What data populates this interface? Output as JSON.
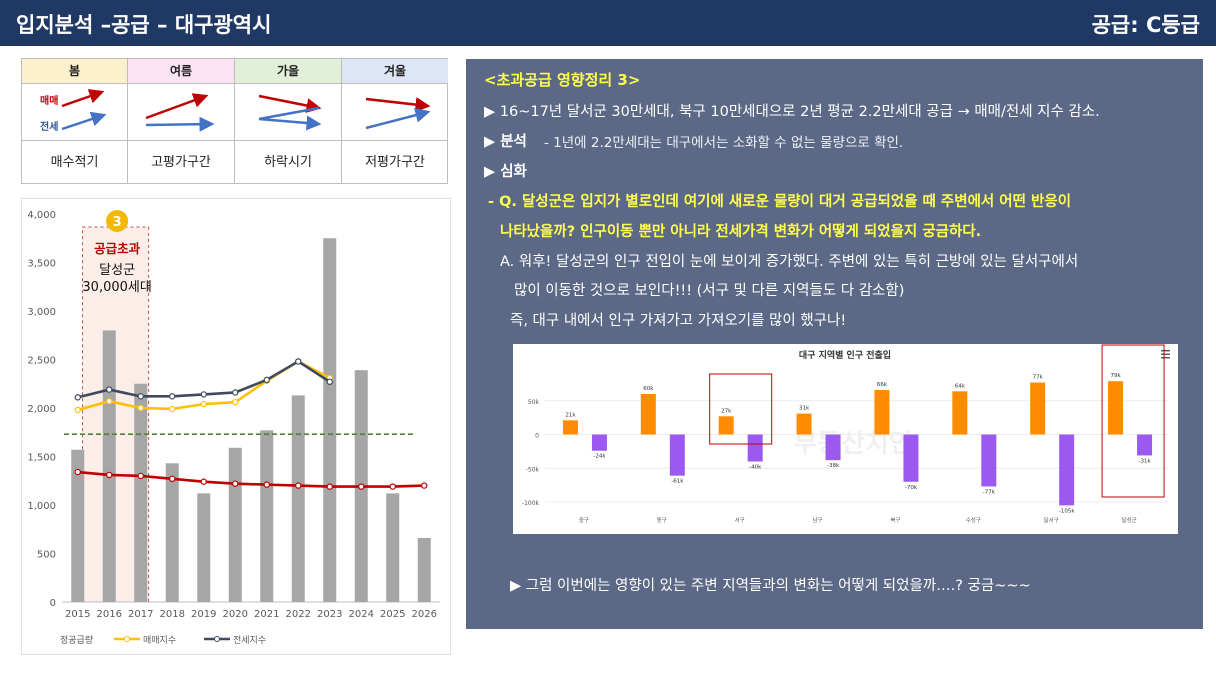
{
  "header": {
    "title": "입지분석 –공급 – 대구광역시",
    "grade": "공급: C등급"
  },
  "season_table": {
    "columns": [
      {
        "season": "봄",
        "desc": "매수적기",
        "bg": "#fdf0cc"
      },
      {
        "season": "여름",
        "desc": "고평가구간",
        "bg": "#fbe3f3"
      },
      {
        "season": "가을",
        "desc": "하락시기",
        "bg": "#e2efd9"
      },
      {
        "season": "겨울",
        "desc": "저평가구간",
        "bg": "#dce6f4"
      }
    ],
    "label_sale": "매매",
    "label_jeonse": "전세"
  },
  "supply_chart": {
    "badge": "3",
    "annotation_title": "공급초과",
    "annotation_line1": "달성군",
    "annotation_line2": "30,000세대",
    "legend": [
      "정공급량",
      "매매지수",
      "전세지수"
    ],
    "colors": {
      "bar": "#a6a6a6",
      "sale": "#ffc000",
      "jeonse": "#404a5e",
      "trend": "#c00000",
      "avg": "#548235"
    }
  },
  "chart_data": [
    {
      "type": "bar",
      "title": "",
      "categories": [
        "2015",
        "2016",
        "2017",
        "2018",
        "2019",
        "2020",
        "2021",
        "2022",
        "2023",
        "2024",
        "2025",
        "2026"
      ],
      "ylim": [
        0,
        4000
      ],
      "yticks": [
        0,
        500,
        1000,
        1500,
        2000,
        2500,
        3000,
        3500,
        4000
      ],
      "ytick_labels": [
        "0",
        "500",
        "1,000",
        "1,500",
        "2,000",
        "2,500",
        "3,000",
        "3,500",
        "4,000"
      ],
      "series": [
        {
          "name": "정공급량",
          "type": "bar",
          "values": [
            1570,
            2800,
            2250,
            1430,
            1120,
            1590,
            1770,
            2130,
            3750,
            2390,
            1120,
            660
          ]
        },
        {
          "name": "매매지수",
          "type": "line",
          "values": [
            1980,
            2070,
            2000,
            1990,
            2040,
            2060,
            2280,
            2480,
            2310,
            null,
            null,
            null
          ]
        },
        {
          "name": "전세지수",
          "type": "line",
          "values": [
            2110,
            2190,
            2120,
            2120,
            2140,
            2160,
            2290,
            2480,
            2270,
            null,
            null,
            null
          ]
        },
        {
          "values": [
            1340,
            1310,
            1300,
            1270,
            1240,
            1220,
            1210,
            1200,
            1190,
            1190,
            1190,
            1200
          ]
        },
        {
          "values": [
            1730,
            1730,
            1730,
            1730,
            1730,
            1730,
            1730,
            1730,
            1730,
            1730,
            1730,
            1730
          ]
        }
      ]
    },
    {
      "type": "bar",
      "title": "대구 지역별 인구 전출입",
      "categories": [
        "중구",
        "동구",
        "서구",
        "남구",
        "북구",
        "수성구",
        "달서구",
        "달성군"
      ],
      "ylim": [
        -100000,
        60000
      ],
      "yticks": [
        50000,
        0,
        -50000,
        -100000
      ],
      "ytick_labels": [
        "50k",
        "0",
        "-50k",
        "-100k"
      ],
      "series": [
        {
          "values": [
            21000,
            60000,
            27000,
            31000,
            66000,
            64000,
            77000,
            79000
          ],
          "labels": [
            "21k",
            "60k",
            "27k",
            "31k",
            "66k",
            "64k",
            "77k",
            "79k"
          ],
          "color": "#ff8c00"
        },
        {
          "values": [
            -24000,
            -61000,
            -40000,
            -38000,
            -70000,
            -77000,
            -105000,
            -31000
          ],
          "labels": [
            "-24k",
            "-61k",
            "-40k",
            "-38k",
            "-70k",
            "-77k",
            "-105k",
            "-31k"
          ],
          "color": "#9b59f0"
        }
      ]
    }
  ],
  "panel": {
    "heading": "<초과공급 영향정리 3>",
    "line1": "▶ 16~17년 달서군 30만세대, 북구 10만세대으로 2년 평균 2.2만세대  공급 → 매매/전세 지수 감소.",
    "line2_label": "▶ 분석",
    "line2_text": "  - 1년에 2.2만세대는  대구에서는 소화할 수 없는 물량으로 확인.",
    "line3": "▶ 심화",
    "q_line1": "- Q. 달성군은 입지가 별로인데 여기에 새로운 물량이 대거 공급되었을 때 주변에서 어떤 반응이",
    "q_line2": "나타났을까? 인구이동 뿐만 아니라 전세가격 변화가 어떻게 되었을지 궁금하다.",
    "a_line1": "A. 워후! 달성군의 인구 전입이 눈에 보이게 증가했다. 주변에 있는 특히 근방에 있는 달서구에서",
    "a_line2": "많이 이동한 것으로 보인다!!! (서구 및 다른 지역들도 다 감소함)",
    "a_line3": "즉, 대구 내에서 인구 가져가고 가져오기를 많이 했구나!",
    "footer": "▶ 그럼 이번에는 영향이 있는 주변 지역들과의 변화는 어떻게 되었을까….? 궁금~~~",
    "menu_icon": "hamburger-menu-icon",
    "watermark": "부동산치인"
  }
}
